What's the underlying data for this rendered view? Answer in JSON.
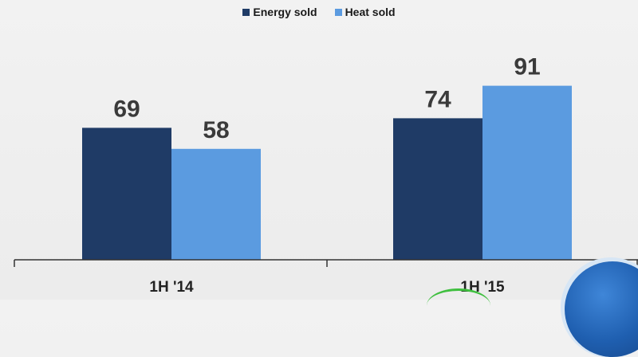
{
  "chart_data": {
    "type": "bar",
    "categories": [
      "1H '14",
      "1H '15"
    ],
    "series": [
      {
        "name": "Energy sold",
        "values": [
          69,
          74
        ],
        "color": "#1f3b66"
      },
      {
        "name": "Heat sold",
        "values": [
          58,
          91
        ],
        "color": "#5b9be0"
      }
    ],
    "data_labels": true,
    "legend_position": "top-center",
    "grid": false,
    "ylim": [
      0,
      100
    ]
  }
}
